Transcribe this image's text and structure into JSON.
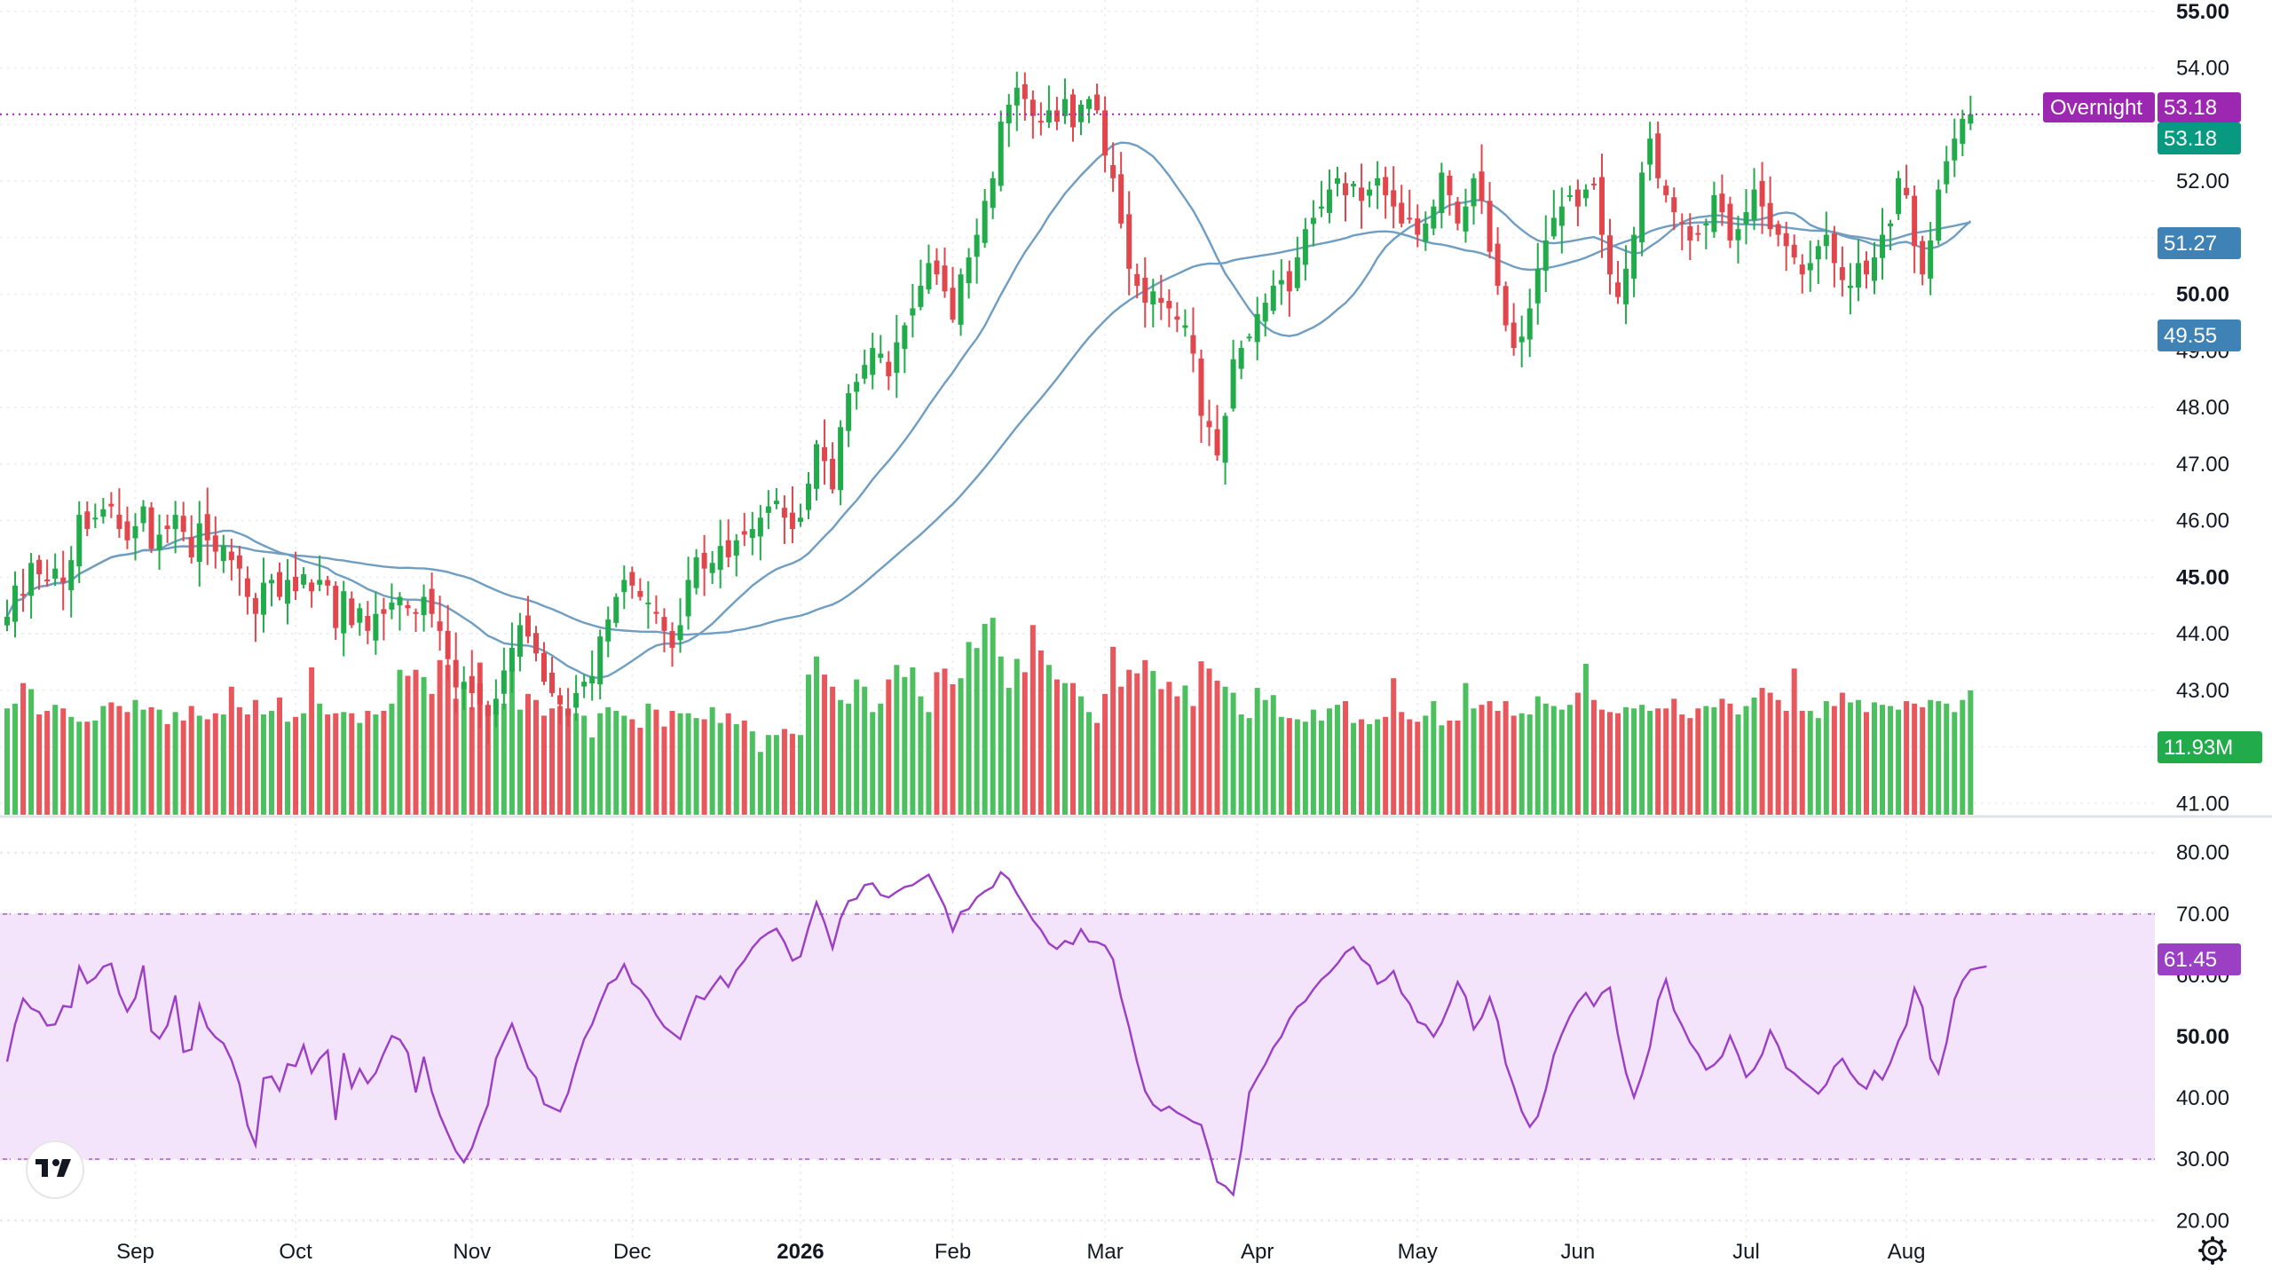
{
  "colors": {
    "up": "#22ab4a",
    "down": "#e0464c",
    "ma_fast": "#6f9ec2",
    "ma_slow": "#6f9ec2",
    "rsi": "#9b3fc4",
    "rsi_band": "#f3e3fb",
    "overnight_tag": "#9c27b0",
    "last_price_tag": "#089981",
    "ma_fast_tag": "#3f83b6",
    "ma_slow_tag": "#3f83b6",
    "volume_tag": "#22ab4a"
  },
  "tags": {
    "overnight_label": "Overnight",
    "overnight_value": "53.18",
    "last_price": "53.18",
    "ma_fast": "51.27",
    "ma_slow": "49.55",
    "volume": "11.93M",
    "rsi": "61.45"
  },
  "icons": {
    "logo": "tradingview-logo-icon",
    "settings": "gear-icon"
  },
  "chart_data": [
    {
      "type": "candlestick",
      "price_axis_ticks": [
        "55.00",
        "54.00",
        "53.00",
        "52.00",
        "51.00",
        "50.00",
        "49.00",
        "48.00",
        "47.00",
        "46.00",
        "45.00",
        "44.00",
        "43.00",
        "42.00",
        "41.00"
      ],
      "bold_ticks": [
        "55.00",
        "50.00",
        "45.00"
      ],
      "ylim": [
        40.8,
        55.2
      ],
      "overnight_line": 53.18,
      "time_axis_labels": [
        "Sep",
        "Oct",
        "Nov",
        "Dec",
        "2026",
        "Feb",
        "Mar",
        "Apr",
        "May",
        "Jun",
        "Jul",
        "Aug"
      ],
      "bold_time_labels": [
        "2026"
      ],
      "label_bar_index": [
        16,
        36,
        58,
        78,
        99,
        118,
        137,
        156,
        176,
        196,
        217,
        237
      ],
      "closes": [
        44.3,
        44.85,
        44.7,
        45.25,
        45.05,
        44.95,
        45.15,
        44.9,
        45.3,
        46.1,
        45.85,
        46.05,
        46.2,
        46.25,
        45.85,
        45.65,
        45.9,
        46.25,
        45.5,
        45.75,
        45.85,
        46.1,
        45.8,
        45.35,
        45.95,
        45.65,
        45.45,
        45.55,
        45.3,
        45.15,
        44.65,
        44.35,
        44.9,
        44.95,
        44.65,
        44.95,
        44.75,
        45.05,
        44.75,
        44.95,
        44.85,
        44.1,
        44.75,
        44.15,
        44.45,
        44.05,
        44.35,
        44.35,
        44.55,
        44.65,
        44.45,
        44.35,
        44.65,
        44.35,
        44.05,
        43.55,
        43.05,
        43.15,
        42.95,
        42.75,
        42.55,
        42.85,
        43.35,
        43.75,
        44.15,
        43.95,
        43.65,
        43.15,
        42.95,
        42.75,
        42.55,
        42.95,
        43.15,
        43.25,
        43.95,
        44.25,
        44.65,
        44.95,
        44.85,
        44.65,
        44.55,
        44.35,
        44.05,
        43.75,
        44.15,
        44.95,
        45.35,
        45.15,
        45.25,
        45.55,
        45.35,
        45.65,
        45.75,
        45.85,
        46.05,
        46.25,
        46.35,
        46.05,
        45.85,
        46.05,
        46.65,
        47.35,
        47.05,
        46.55,
        47.65,
        48.25,
        48.45,
        48.75,
        49.05,
        48.95,
        48.55,
        49.15,
        49.45,
        49.75,
        50.15,
        50.55,
        50.35,
        50.05,
        49.55,
        50.35,
        50.65,
        51.05,
        51.65,
        52.05,
        53.05,
        53.35,
        53.65,
        53.45,
        53.15,
        53.05,
        53.25,
        53.05,
        53.45,
        52.95,
        53.35,
        53.45,
        53.25,
        52.45,
        52.05,
        51.25,
        50.45,
        50.15,
        49.85,
        50.05,
        49.85,
        49.75,
        49.55,
        49.45,
        48.95,
        47.85,
        47.65,
        47.15,
        47.85,
        48.85,
        49.05,
        49.25,
        49.65,
        49.85,
        50.15,
        50.25,
        50.05,
        50.65,
        51.15,
        51.35,
        51.55,
        51.85,
        52.05,
        51.75,
        51.95,
        51.65,
        51.85,
        52.05,
        51.75,
        51.55,
        51.25,
        51.35,
        51.05,
        51.25,
        51.55,
        52.15,
        51.75,
        51.25,
        51.55,
        52.05,
        51.65,
        50.75,
        50.15,
        49.45,
        49.05,
        49.25,
        49.75,
        50.45,
        50.95,
        51.35,
        51.55,
        51.75,
        51.55,
        51.85,
        51.95,
        51.05,
        50.35,
        49.95,
        50.45,
        51.05,
        52.15,
        52.75,
        52.05,
        51.75,
        51.45,
        51.25,
        50.95,
        51.05,
        51.25,
        51.75,
        51.45,
        50.95,
        51.15,
        51.45,
        51.85,
        51.55,
        51.15,
        51.05,
        50.85,
        50.65,
        50.35,
        50.55,
        50.85,
        51.05,
        50.55,
        50.25,
        50.15,
        50.55,
        50.35,
        50.65,
        51.05,
        51.25,
        52.05,
        51.75,
        50.85,
        50.35,
        50.95,
        51.85,
        52.35,
        52.75,
        53.1,
        53.18
      ],
      "volumes": [
        8.8,
        9.2,
        10.9,
        10.4,
        8.3,
        8.6,
        9.1,
        8.8,
        8.1,
        7.7,
        7.7,
        7.8,
        9.0,
        9.3,
        9.0,
        8.5,
        9.5,
        8.7,
        8.9,
        8.7,
        7.5,
        8.5,
        7.8,
        9.0,
        8.2,
        7.9,
        8.4,
        8.3,
        10.6,
        8.9,
        8.3,
        9.5,
        8.3,
        8.6,
        9.7,
        7.7,
        8.1,
        8.4,
        12.2,
        9.2,
        8.3,
        8.4,
        8.5,
        8.4,
        7.6,
        8.6,
        8.3,
        8.6,
        9.2,
        12.0,
        11.5,
        12.0,
        11.4,
        10.0,
        12.8,
        12.4,
        9.6,
        10.8,
        8.9,
        12.6,
        9.1,
        8.5,
        9.2,
        12.3,
        8.7,
        10.0,
        9.5,
        8.2,
        8.8,
        9.0,
        8.8,
        8.4,
        8.2,
        6.4,
        8.4,
        8.9,
        8.6,
        8.2,
        7.9,
        7.2,
        9.2,
        8.7,
        7.3,
        8.6,
        8.4,
        8.4,
        8.0,
        7.9,
        8.9,
        7.6,
        8.4,
        7.5,
        7.8,
        6.9,
        5.2,
        6.6,
        6.6,
        7.1,
        6.7,
        6.6,
        11.6,
        13.1,
        11.6,
        10.6,
        9.5,
        9.2,
        11.2,
        10.6,
        8.5,
        9.2,
        11.2,
        12.4,
        11.4,
        12.2,
        9.8,
        8.5,
        11.8,
        12.1,
        10.8,
        11.3,
        14.3,
        13.8,
        15.8,
        16.3,
        13.1,
        10.5,
        12.9,
        11.8,
        15.7,
        13.6,
        12.4,
        11.2,
        10.9,
        10.9,
        9.8,
        8.5,
        7.6,
        10.0,
        13.9,
        10.6,
        12.0,
        11.7,
        12.8,
        11.9,
        10.4,
        11.0,
        9.8,
        10.7,
        9.0,
        12.7,
        12.1,
        11.1,
        10.6,
        10.1,
        8.3,
        8.0,
        10.5,
        9.5,
        9.9,
        8.1,
        8.0,
        7.9,
        7.7,
        8.7,
        7.8,
        8.8,
        9.1,
        9.4,
        7.6,
        7.9,
        7.5,
        7.9,
        8.1,
        11.3,
        8.5,
        7.9,
        7.7,
        8.2,
        9.4,
        7.4,
        7.8,
        7.8,
        10.9,
        8.8,
        9.1,
        9.4,
        8.6,
        9.4,
        8.2,
        8.4,
        8.3,
        9.8,
        9.2,
        9.0,
        8.7,
        9.1,
        10.1,
        12.5,
        9.5,
        8.7,
        8.5,
        8.4,
        8.9,
        8.8,
        9.1,
        8.6,
        8.8,
        8.8,
        9.6,
        8.3,
        8.0,
        8.8,
        9.0,
        8.9,
        9.6,
        9.2,
        8.3,
        9.0,
        9.7,
        10.5,
        10.1,
        9.5,
        8.6,
        12.1,
        8.6,
        8.6,
        8.0,
        9.4,
        9.0,
        10.1,
        9.3,
        9.5,
        8.5,
        9.3,
        9.1,
        9.0,
        8.7,
        9.4,
        9.2,
        8.9,
        9.5,
        9.4,
        9.2,
        8.5,
        9.5,
        10.3,
        11.2,
        10.8,
        12.6,
        10.7,
        11.1,
        9.8,
        9.4,
        10.3,
        9.5,
        11.93
      ],
      "volume_scale_max": 18,
      "ma_fast_window": 20,
      "ma_slow_window": 50
    },
    {
      "type": "line",
      "name": "RSI",
      "ylim": [
        17,
        83
      ],
      "axis_ticks": [
        "80.00",
        "70.00",
        "60.00",
        "50.00",
        "40.00",
        "30.00",
        "20.00"
      ],
      "bold_ticks": [
        "50.00"
      ],
      "band": [
        30,
        70
      ],
      "values": [
        45.9,
        52.0,
        56.2,
        54.6,
        54.0,
        51.8,
        52.0,
        55.0,
        54.8,
        61.4,
        58.7,
        59.6,
        61.4,
        61.9,
        57.0,
        54.1,
        56.3,
        61.6,
        50.9,
        49.7,
        51.8,
        56.7,
        47.5,
        47.9,
        55.2,
        51.5,
        49.9,
        48.9,
        46.2,
        42.2,
        35.5,
        32.3,
        43.2,
        43.5,
        41.2,
        45.5,
        45.2,
        48.6,
        44.1,
        46.4,
        47.7,
        36.4,
        47.3,
        41.7,
        44.7,
        42.4,
        44.1,
        47.3,
        50.1,
        49.5,
        47.4,
        40.9,
        46.7,
        41.0,
        37.2,
        34.2,
        31.3,
        29.5,
        31.8,
        35.6,
        38.9,
        46.4,
        49.3,
        52.1,
        48.5,
        44.9,
        43.3,
        39.0,
        38.4,
        37.8,
        40.8,
        45.5,
        49.6,
        52.0,
        55.5,
        58.6,
        59.4,
        61.8,
        58.7,
        57.7,
        56.0,
        53.5,
        51.6,
        50.6,
        49.6,
        53.2,
        56.6,
        56.1,
        58.0,
        59.8,
        58.1,
        60.8,
        62.4,
        64.5,
        66.0,
        66.9,
        67.6,
        65.4,
        62.4,
        63.1,
        67.8,
        71.9,
        68.6,
        64.4,
        69.3,
        72.1,
        72.5,
        74.7,
        75.0,
        73.1,
        72.7,
        73.6,
        74.4,
        74.7,
        75.6,
        76.4,
        73.8,
        71.2,
        67.2,
        70.3,
        70.8,
        72.7,
        73.7,
        74.4,
        76.8,
        75.7,
        73.3,
        71.2,
        69.0,
        67.4,
        65.2,
        64.3,
        65.6,
        65.1,
        67.5,
        65.5,
        65.4,
        64.8,
        62.6,
        56.4,
        51.5,
        45.9,
        41.1,
        38.9,
        37.9,
        38.6,
        37.6,
        36.9,
        36.1,
        35.6,
        31.2,
        26.3,
        25.6,
        24.2,
        31.5,
        40.9,
        43.3,
        45.5,
        48.2,
        50.0,
        52.9,
        54.8,
        55.8,
        57.7,
        59.3,
        60.4,
        61.9,
        63.7,
        64.6,
        62.6,
        61.6,
        58.6,
        59.3,
        60.7,
        57.1,
        55.4,
        52.4,
        51.9,
        50.0,
        52.2,
        55.3,
        58.9,
        56.5,
        51.2,
        53.1,
        56.4,
        52.5,
        45.6,
        41.9,
        37.8,
        35.3,
        37.0,
        41.4,
        47.0,
        50.4,
        53.3,
        55.6,
        57.1,
        55.0,
        57.1,
        58.0,
        50.3,
        44.1,
        40.1,
        43.8,
        48.3,
        55.9,
        59.3,
        54.3,
        51.8,
        49.0,
        47.2,
        44.6,
        45.4,
        46.8,
        50.1,
        47.0,
        43.4,
        44.7,
        47.1,
        51.0,
        48.5,
        44.9,
        44.0,
        42.8,
        41.8,
        40.7,
        42.2,
        45.1,
        46.4,
        44.1,
        42.4,
        41.5,
        44.4,
        43.0,
        45.7,
        49.3,
        51.9,
        57.9,
        54.8,
        46.4,
        44.0,
        49.0,
        56.1,
        59.1,
        60.9,
        61.2,
        61.45
      ]
    }
  ]
}
